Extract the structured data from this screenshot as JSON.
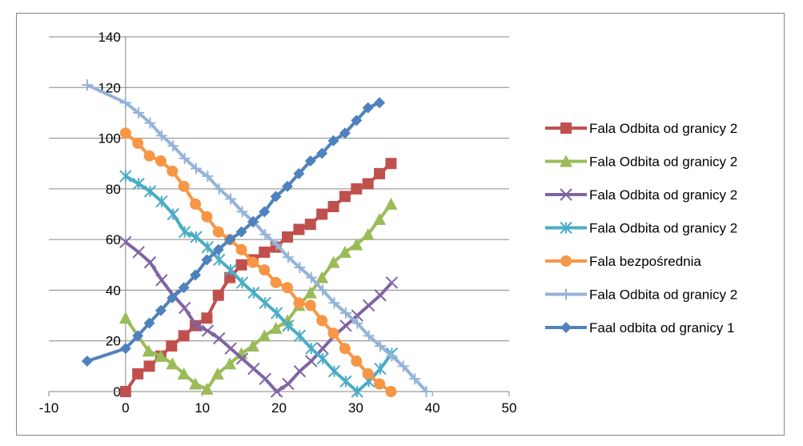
{
  "chart_data": {
    "type": "scatter",
    "title": "",
    "xlabel": "",
    "ylabel": "",
    "xlim": [
      -10,
      50
    ],
    "ylim": [
      0,
      140
    ],
    "xticks": [
      -10,
      0,
      10,
      20,
      30,
      40,
      50
    ],
    "yticks": [
      0,
      20,
      40,
      60,
      80,
      100,
      120,
      140
    ],
    "grid": "horizontal",
    "legend_position": "right",
    "series": [
      {
        "name": "Fala Odbita od granicy 2",
        "color": "#C0504D",
        "marker": "square",
        "x": [
          0,
          1.6,
          3.1,
          4.6,
          6,
          7.6,
          9.1,
          10.6,
          12.1,
          13.6,
          15.1,
          16.6,
          18.1,
          19.6,
          21.1,
          22.6,
          24.1,
          25.6,
          27.1,
          28.6,
          30.1,
          31.6,
          33.1,
          34.6
        ],
        "y": [
          0,
          7,
          10,
          14,
          18,
          22,
          26,
          29,
          38,
          45,
          50,
          52,
          55,
          57,
          61,
          64,
          66,
          70,
          73,
          77,
          80,
          82,
          86,
          90
        ]
      },
      {
        "name": "Fala Odbita od granicy 2",
        "color": "#9BBB59",
        "marker": "triangle",
        "x": [
          0,
          3,
          4.6,
          6.1,
          7.6,
          9.1,
          10.6,
          12,
          13.6,
          15.1,
          16.6,
          18.1,
          19.6,
          21.1,
          22.6,
          24.1,
          25.6,
          27.1,
          28.6,
          30.1,
          31.6,
          33.1,
          34.6
        ],
        "y": [
          29,
          16,
          14,
          11,
          7,
          3,
          1,
          7,
          11,
          15,
          18,
          22,
          25,
          28,
          34,
          39,
          45,
          51,
          55,
          58,
          62,
          68,
          74
        ]
      },
      {
        "name": "Fala Odbita od granicy 2",
        "color": "#8064A2",
        "marker": "x",
        "x": [
          0,
          1.7,
          3.2,
          4.7,
          6.2,
          7.7,
          9.2,
          10.7,
          12.2,
          13.7,
          15.2,
          16.7,
          18.2,
          19.7,
          21.2,
          22.7,
          24.2,
          25.7,
          27.2,
          28.7,
          30.2,
          31.7,
          33.2,
          34.7
        ],
        "y": [
          59,
          55,
          51,
          44,
          38,
          33,
          26,
          24,
          21,
          17,
          13,
          9,
          5,
          0,
          3,
          8,
          12,
          17,
          22,
          26,
          30,
          34,
          38,
          43
        ]
      },
      {
        "name": "Fala Odbita od granicy 2",
        "color": "#4BACC6",
        "marker": "asterisk",
        "x": [
          0,
          1.7,
          3.2,
          4.7,
          6.2,
          7.7,
          9.2,
          10.7,
          12.2,
          13.7,
          15.2,
          16.7,
          18.2,
          19.7,
          21.2,
          22.7,
          24.2,
          25.7,
          27.2,
          28.7,
          30.2,
          31.7,
          33.2,
          34.7
        ],
        "y": [
          85,
          82,
          79,
          75,
          70,
          63,
          61,
          57,
          52,
          48,
          43,
          39,
          35,
          31,
          26,
          22,
          17,
          13,
          8,
          4,
          0,
          4,
          9,
          15
        ]
      },
      {
        "name": "Fala bezpośrednia",
        "color": "#F79646",
        "marker": "circle",
        "x": [
          0,
          1.6,
          3.1,
          4.6,
          6.1,
          7.6,
          9.1,
          10.6,
          12.1,
          13.6,
          15.1,
          16.6,
          18.1,
          19.6,
          21.1,
          22.6,
          24.1,
          25.6,
          27.1,
          28.6,
          30.1,
          31.6,
          33.1,
          34.6
        ],
        "y": [
          102,
          98,
          93,
          91,
          87,
          81,
          74,
          69,
          63,
          60,
          56,
          51,
          48,
          43,
          41,
          35,
          34,
          28,
          23,
          17,
          12,
          7,
          3,
          0
        ]
      },
      {
        "name": "Fala Odbita od granicy 2",
        "color": "#95B3D7",
        "marker": "plus",
        "x": [
          -5,
          0,
          1.7,
          3.2,
          4.7,
          6.2,
          7.7,
          9.2,
          10.7,
          12.2,
          13.7,
          15.2,
          16.7,
          18.2,
          19.7,
          21.2,
          22.7,
          24.2,
          25.7,
          27.2,
          28.7,
          30.2,
          31.7,
          33.2,
          34.7,
          36.2,
          37.7,
          39.2
        ],
        "y": [
          121,
          114,
          110,
          106,
          101,
          97,
          92,
          88,
          85,
          80,
          76,
          71,
          67,
          62,
          58,
          53,
          49,
          45,
          40,
          35,
          31,
          27,
          22,
          18,
          14,
          10,
          5,
          0
        ]
      },
      {
        "name": "Faal odbita od granicy 1",
        "color": "#4F81BD",
        "marker": "diamond",
        "x": [
          -5,
          0,
          1.6,
          3.1,
          4.6,
          6.1,
          7.6,
          9.1,
          10.6,
          12.1,
          13.6,
          15.1,
          16.6,
          18.1,
          19.6,
          21.1,
          22.6,
          24.1,
          25.6,
          27.1,
          28.6,
          30.1,
          31.6,
          33.1
        ],
        "y": [
          12,
          17,
          22,
          27,
          32,
          37,
          41,
          46,
          52,
          56,
          60,
          63,
          67,
          71,
          77,
          81,
          86,
          91,
          94,
          99,
          102,
          107,
          112,
          114
        ]
      }
    ]
  }
}
